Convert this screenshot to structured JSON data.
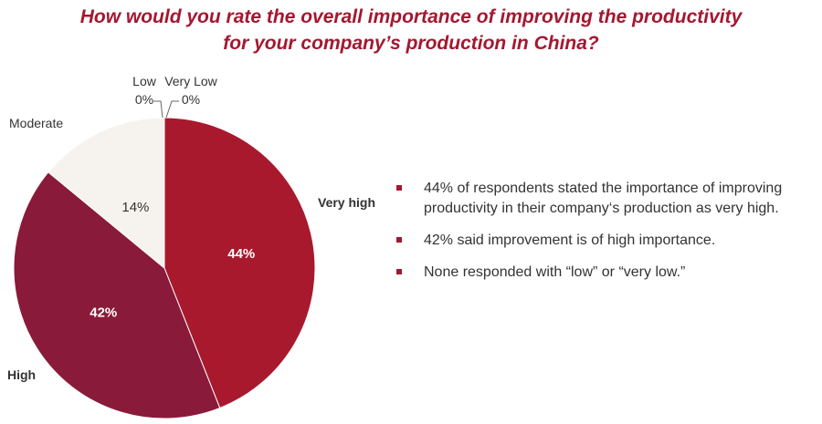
{
  "title": {
    "line1": "How would you rate the overall importance of improving the productivity",
    "line2": "for your company’s production in China?"
  },
  "colors": {
    "title": "#a31830",
    "very_high": "#a8192e",
    "high": "#8a1a3a",
    "moderate": "#f6f3ee",
    "bullet": "#a31830"
  },
  "chart_data": {
    "type": "pie",
    "slices": [
      {
        "label": "Very high",
        "value": 44,
        "value_label": "44%"
      },
      {
        "label": "High",
        "value": 42,
        "value_label": "42%"
      },
      {
        "label": "Moderate",
        "value": 14,
        "value_label": "14%"
      },
      {
        "label": "Low",
        "value": 0,
        "value_label": "0%"
      },
      {
        "label": "Very Low",
        "value": 0,
        "value_label": "0%"
      }
    ]
  },
  "bullets": [
    {
      "line1": "44% of respondents stated the importance of improving",
      "line2": "productivity in their company‘s production as very high."
    },
    {
      "line1": "42% said improvement is of high importance.",
      "line2": ""
    },
    {
      "line1": "None responded with “low” or “very low.”",
      "line2": ""
    }
  ]
}
